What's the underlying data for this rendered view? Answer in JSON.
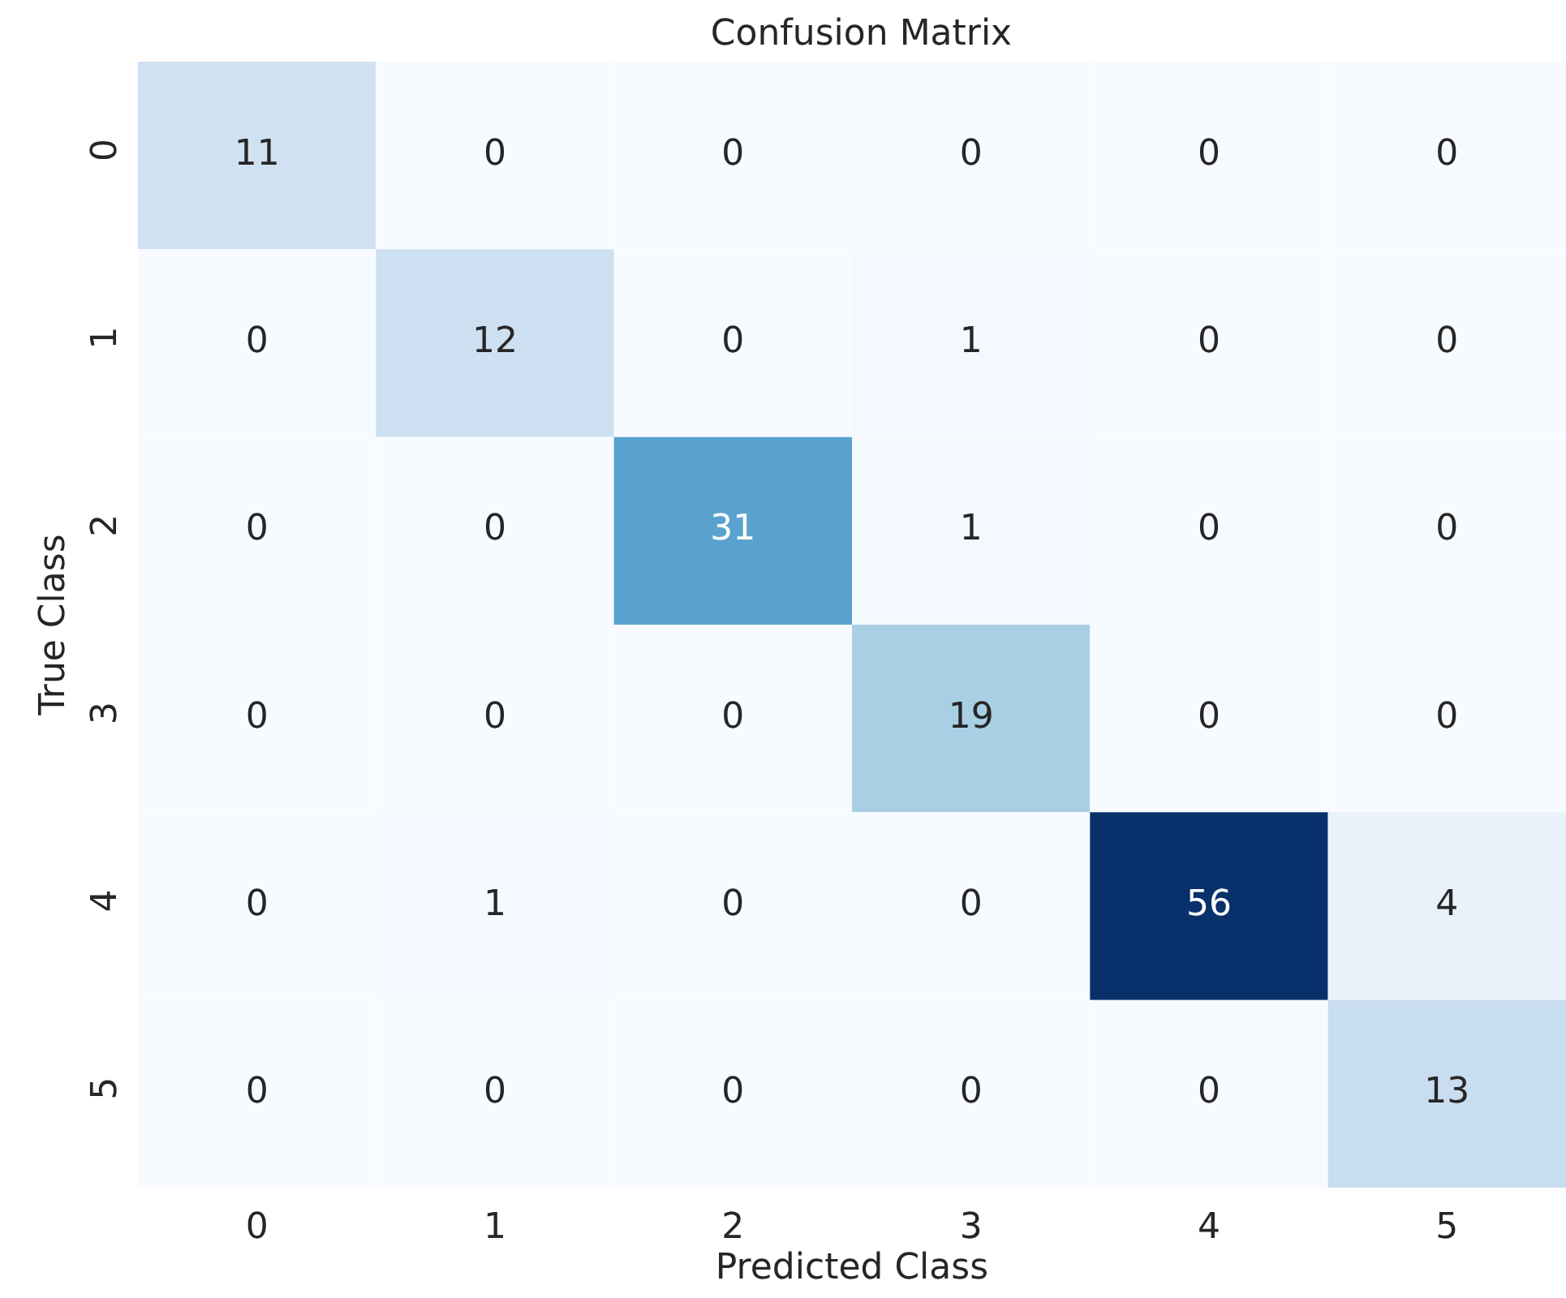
{
  "chart_data": {
    "type": "heatmap",
    "title": "Confusion Matrix",
    "xlabel": "Predicted Class",
    "ylabel": "True Class",
    "categories": [
      "0",
      "1",
      "2",
      "3",
      "4",
      "5"
    ],
    "y_categories": [
      "0",
      "1",
      "2",
      "3",
      "4",
      "5"
    ],
    "cells": [
      [
        11,
        0,
        0,
        0,
        0,
        0
      ],
      [
        0,
        12,
        0,
        1,
        0,
        0
      ],
      [
        0,
        0,
        31,
        1,
        0,
        0
      ],
      [
        0,
        0,
        0,
        19,
        0,
        0
      ],
      [
        0,
        1,
        0,
        0,
        56,
        4
      ],
      [
        0,
        0,
        0,
        0,
        0,
        13
      ]
    ],
    "data_labels": true
  }
}
